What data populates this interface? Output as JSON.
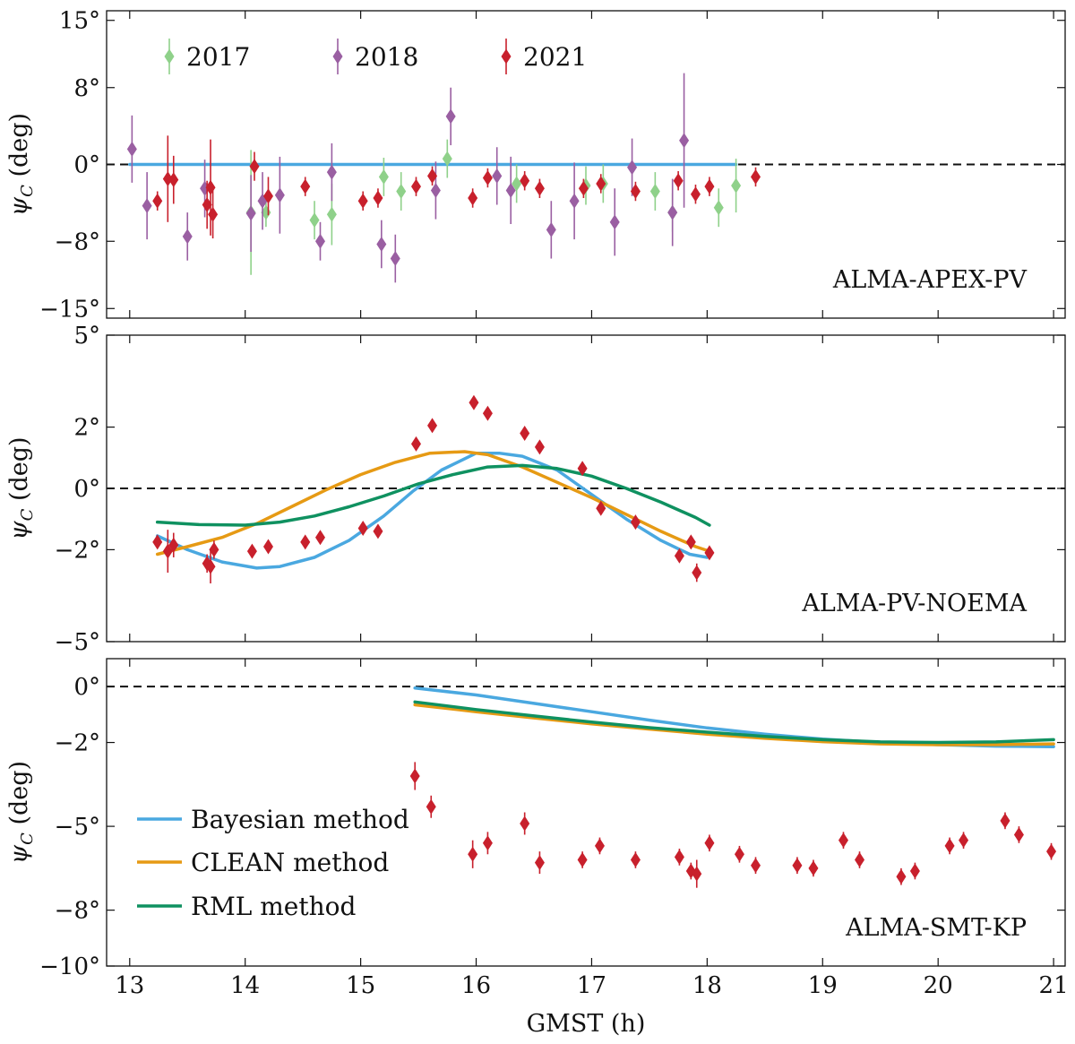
{
  "colors": {
    "y2017": "#8fd18a",
    "y2018": "#9a5fa2",
    "y2021": "#c8202c",
    "bayesian": "#4aa8e0",
    "clean": "#e69a14",
    "rml": "#0f9160",
    "zero_line": "#111111"
  },
  "chart_data": [
    {
      "type": "scatter",
      "panel_label": "ALMA-APEX-PV",
      "ylabel": "ψ_C (deg)",
      "ylim": [
        -16,
        16
      ],
      "yticks": [
        15,
        8,
        0,
        -8,
        -15
      ],
      "ytick_labels": [
        "15°",
        "8°",
        "0°",
        "−8°",
        "−15°"
      ],
      "xlim": [
        12.8,
        21.1
      ],
      "legend": {
        "placement": "top-left",
        "entries": [
          "2017",
          "2018",
          "2021"
        ]
      },
      "series": [
        {
          "name": "2017",
          "color_key": "y2017",
          "points": [
            [
              14.05,
              -5.0,
              6.5
            ],
            [
              14.18,
              -5.0,
              1.5
            ],
            [
              14.6,
              -5.8,
              2.0
            ],
            [
              14.75,
              -5.2,
              3.2
            ],
            [
              15.2,
              -1.3,
              2.0
            ],
            [
              15.35,
              -2.8,
              2.0
            ],
            [
              15.75,
              0.6,
              2.0
            ],
            [
              16.35,
              -2.0,
              2.0
            ],
            [
              16.95,
              -2.2,
              2.0
            ],
            [
              17.1,
              -2.0,
              2.0
            ],
            [
              17.55,
              -2.8,
              2.0
            ],
            [
              17.7,
              -5.0,
              2.0
            ],
            [
              18.1,
              -4.5,
              2.0
            ],
            [
              18.25,
              -2.2,
              2.8
            ]
          ]
        },
        {
          "name": "2018",
          "color_key": "y2018",
          "points": [
            [
              13.02,
              1.6,
              3.5
            ],
            [
              13.15,
              -4.3,
              3.5
            ],
            [
              13.5,
              -7.5,
              2.5
            ],
            [
              13.65,
              -2.5,
              3.0
            ],
            [
              14.05,
              -5.1,
              4.0
            ],
            [
              14.15,
              -3.8,
              3.0
            ],
            [
              14.3,
              -3.2,
              4.0
            ],
            [
              14.65,
              -8.0,
              2.0
            ],
            [
              14.75,
              -0.8,
              3.0
            ],
            [
              15.18,
              -8.3,
              2.5
            ],
            [
              15.3,
              -9.8,
              2.5
            ],
            [
              15.65,
              -2.7,
              3.0
            ],
            [
              15.78,
              5.0,
              3.0
            ],
            [
              16.18,
              -1.2,
              3.0
            ],
            [
              16.3,
              -2.7,
              3.5
            ],
            [
              16.65,
              -6.8,
              3.0
            ],
            [
              16.85,
              -3.8,
              4.0
            ],
            [
              17.2,
              -6.0,
              3.5
            ],
            [
              17.35,
              -0.3,
              3.0
            ],
            [
              17.7,
              -5.0,
              3.5
            ],
            [
              17.8,
              2.5,
              7.0
            ]
          ]
        },
        {
          "name": "2021",
          "color_key": "y2021",
          "points": [
            [
              13.24,
              -3.8,
              1.0
            ],
            [
              13.33,
              -1.5,
              4.5
            ],
            [
              13.38,
              -1.6,
              2.5
            ],
            [
              13.67,
              -4.2,
              2.5
            ],
            [
              13.7,
              -2.4,
              5.0
            ],
            [
              13.72,
              -5.2,
              2.5
            ],
            [
              14.08,
              -0.2,
              1.5
            ],
            [
              14.2,
              -3.3,
              2.0
            ],
            [
              14.52,
              -2.3,
              1.0
            ],
            [
              15.02,
              -3.8,
              1.0
            ],
            [
              15.15,
              -3.5,
              1.0
            ],
            [
              15.48,
              -2.3,
              1.0
            ],
            [
              15.62,
              -1.2,
              1.0
            ],
            [
              15.97,
              -3.5,
              1.0
            ],
            [
              16.1,
              -1.4,
              1.0
            ],
            [
              16.42,
              -1.7,
              1.0
            ],
            [
              16.55,
              -2.5,
              1.0
            ],
            [
              16.93,
              -2.5,
              1.0
            ],
            [
              17.08,
              -2.0,
              1.0
            ],
            [
              17.38,
              -2.8,
              1.0
            ],
            [
              17.75,
              -1.7,
              1.0
            ],
            [
              17.9,
              -3.1,
              1.0
            ],
            [
              18.02,
              -2.3,
              1.0
            ],
            [
              18.42,
              -1.3,
              1.0
            ]
          ]
        }
      ],
      "lines": [
        {
          "method": "bayesian",
          "color_key": "bayesian",
          "x": [
            13.0,
            18.25
          ],
          "y": [
            0.0,
            0.0
          ]
        }
      ],
      "zero_line": true
    },
    {
      "type": "scatter",
      "panel_label": "ALMA-PV-NOEMA",
      "ylabel": "ψ_C (deg)",
      "ylim": [
        -5,
        5
      ],
      "yticks": [
        5,
        2,
        0,
        -2,
        -5
      ],
      "ytick_labels": [
        "5°",
        "2°",
        "0°",
        "−2°",
        "−5°"
      ],
      "xlim": [
        12.8,
        21.1
      ],
      "series": [
        {
          "name": "2021",
          "color_key": "y2021",
          "points": [
            [
              13.24,
              -1.75,
              0.15
            ],
            [
              13.33,
              -2.05,
              0.7
            ],
            [
              13.38,
              -1.85,
              0.4
            ],
            [
              13.67,
              -2.45,
              0.3
            ],
            [
              13.7,
              -2.55,
              0.55
            ],
            [
              13.73,
              -2.0,
              0.3
            ],
            [
              14.06,
              -2.05,
              0.15
            ],
            [
              14.2,
              -1.9,
              0.2
            ],
            [
              14.52,
              -1.75,
              0.15
            ],
            [
              14.65,
              -1.6,
              0.15
            ],
            [
              15.02,
              -1.3,
              0.1
            ],
            [
              15.15,
              -1.4,
              0.15
            ],
            [
              15.48,
              1.45,
              0.15
            ],
            [
              15.62,
              2.05,
              0.15
            ],
            [
              15.98,
              2.8,
              0.15
            ],
            [
              16.1,
              2.45,
              0.15
            ],
            [
              16.42,
              1.8,
              0.15
            ],
            [
              16.55,
              1.35,
              0.15
            ],
            [
              16.92,
              0.65,
              0.15
            ],
            [
              17.08,
              -0.65,
              0.15
            ],
            [
              17.38,
              -1.1,
              0.15
            ],
            [
              17.76,
              -2.2,
              0.2
            ],
            [
              17.86,
              -1.75,
              0.2
            ],
            [
              17.91,
              -2.75,
              0.3
            ],
            [
              18.02,
              -2.1,
              0.2
            ]
          ]
        }
      ],
      "lines": [
        {
          "method": "bayesian",
          "color_key": "bayesian",
          "x": [
            13.24,
            13.5,
            13.8,
            14.1,
            14.3,
            14.6,
            14.9,
            15.2,
            15.45,
            15.7,
            16.0,
            16.2,
            16.4,
            16.7,
            17.0,
            17.3,
            17.6,
            17.85,
            18.0
          ],
          "y": [
            -1.55,
            -2.0,
            -2.4,
            -2.6,
            -2.55,
            -2.25,
            -1.7,
            -0.9,
            -0.1,
            0.6,
            1.15,
            1.15,
            1.05,
            0.6,
            -0.2,
            -1.0,
            -1.7,
            -2.15,
            -2.25
          ]
        },
        {
          "method": "clean",
          "color_key": "clean",
          "x": [
            13.24,
            13.5,
            13.8,
            14.1,
            14.4,
            14.7,
            15.0,
            15.3,
            15.6,
            15.9,
            16.1,
            16.4,
            16.7,
            17.0,
            17.3,
            17.6,
            17.9,
            18.02
          ],
          "y": [
            -2.15,
            -1.9,
            -1.6,
            -1.15,
            -0.6,
            -0.05,
            0.45,
            0.85,
            1.15,
            1.2,
            1.1,
            0.7,
            0.2,
            -0.3,
            -0.85,
            -1.4,
            -1.9,
            -2.05
          ]
        },
        {
          "method": "rml",
          "color_key": "rml",
          "x": [
            13.24,
            13.6,
            14.0,
            14.3,
            14.6,
            14.9,
            15.2,
            15.5,
            15.8,
            16.1,
            16.4,
            16.7,
            17.0,
            17.3,
            17.6,
            17.9,
            18.02
          ],
          "y": [
            -1.1,
            -1.18,
            -1.2,
            -1.1,
            -0.9,
            -0.6,
            -0.25,
            0.15,
            0.45,
            0.7,
            0.75,
            0.65,
            0.4,
            0.0,
            -0.45,
            -0.95,
            -1.2
          ]
        }
      ],
      "zero_line": true
    },
    {
      "type": "scatter",
      "panel_label": "ALMA-SMT-KP",
      "ylabel": "ψ_C (deg)",
      "ylim": [
        -10,
        1
      ],
      "yticks": [
        0,
        -2,
        -5,
        -8,
        -10
      ],
      "ytick_labels": [
        "0°",
        "−2°",
        "−5°",
        "−8°",
        "−10°"
      ],
      "xlim": [
        12.8,
        21.1
      ],
      "xlabel": "GMST (h)",
      "xticks": [
        13,
        14,
        15,
        16,
        17,
        18,
        19,
        20,
        21
      ],
      "xtick_labels": [
        "13",
        "14",
        "15",
        "16",
        "17",
        "18",
        "19",
        "20",
        "21"
      ],
      "legend": {
        "placement": "bottom-left",
        "entries": [
          "Bayesian method",
          "CLEAN method",
          "RML method"
        ]
      },
      "series": [
        {
          "name": "2021",
          "color_key": "y2021",
          "points": [
            [
              15.47,
              -3.2,
              0.5
            ],
            [
              15.61,
              -4.3,
              0.4
            ],
            [
              15.97,
              -6.0,
              0.5
            ],
            [
              16.1,
              -5.6,
              0.4
            ],
            [
              16.42,
              -4.9,
              0.4
            ],
            [
              16.55,
              -6.3,
              0.4
            ],
            [
              16.92,
              -6.2,
              0.3
            ],
            [
              17.07,
              -5.7,
              0.3
            ],
            [
              17.38,
              -6.2,
              0.3
            ],
            [
              17.76,
              -6.1,
              0.3
            ],
            [
              17.86,
              -6.6,
              0.3
            ],
            [
              17.91,
              -6.7,
              0.5
            ],
            [
              18.02,
              -5.6,
              0.3
            ],
            [
              18.28,
              -6.0,
              0.3
            ],
            [
              18.42,
              -6.4,
              0.3
            ],
            [
              18.78,
              -6.4,
              0.3
            ],
            [
              18.92,
              -6.5,
              0.3
            ],
            [
              19.18,
              -5.5,
              0.3
            ],
            [
              19.32,
              -6.2,
              0.3
            ],
            [
              19.68,
              -6.8,
              0.3
            ],
            [
              19.8,
              -6.6,
              0.3
            ],
            [
              20.1,
              -5.7,
              0.3
            ],
            [
              20.22,
              -5.5,
              0.3
            ],
            [
              20.58,
              -4.8,
              0.3
            ],
            [
              20.7,
              -5.3,
              0.3
            ],
            [
              20.98,
              -5.9,
              0.3
            ]
          ]
        }
      ],
      "lines": [
        {
          "method": "bayesian",
          "color_key": "bayesian",
          "x": [
            15.47,
            16.0,
            16.5,
            17.0,
            17.5,
            18.0,
            18.5,
            19.0,
            19.5,
            20.0,
            20.5,
            21.0
          ],
          "y": [
            -0.05,
            -0.3,
            -0.6,
            -0.9,
            -1.2,
            -1.48,
            -1.7,
            -1.88,
            -2.0,
            -2.08,
            -2.13,
            -2.15
          ]
        },
        {
          "method": "clean",
          "color_key": "clean",
          "x": [
            15.47,
            16.0,
            16.5,
            17.0,
            17.5,
            18.0,
            18.5,
            19.0,
            19.5,
            20.0,
            20.5,
            21.0
          ],
          "y": [
            -0.65,
            -0.9,
            -1.12,
            -1.33,
            -1.52,
            -1.7,
            -1.85,
            -1.97,
            -2.05,
            -2.08,
            -2.08,
            -2.05
          ]
        },
        {
          "method": "rml",
          "color_key": "rml",
          "x": [
            15.47,
            16.0,
            16.5,
            17.0,
            17.5,
            18.0,
            18.5,
            19.0,
            19.5,
            20.0,
            20.5,
            21.0
          ],
          "y": [
            -0.55,
            -0.82,
            -1.05,
            -1.27,
            -1.47,
            -1.63,
            -1.78,
            -1.9,
            -1.98,
            -2.0,
            -1.98,
            -1.9
          ]
        }
      ],
      "zero_line": true
    }
  ]
}
